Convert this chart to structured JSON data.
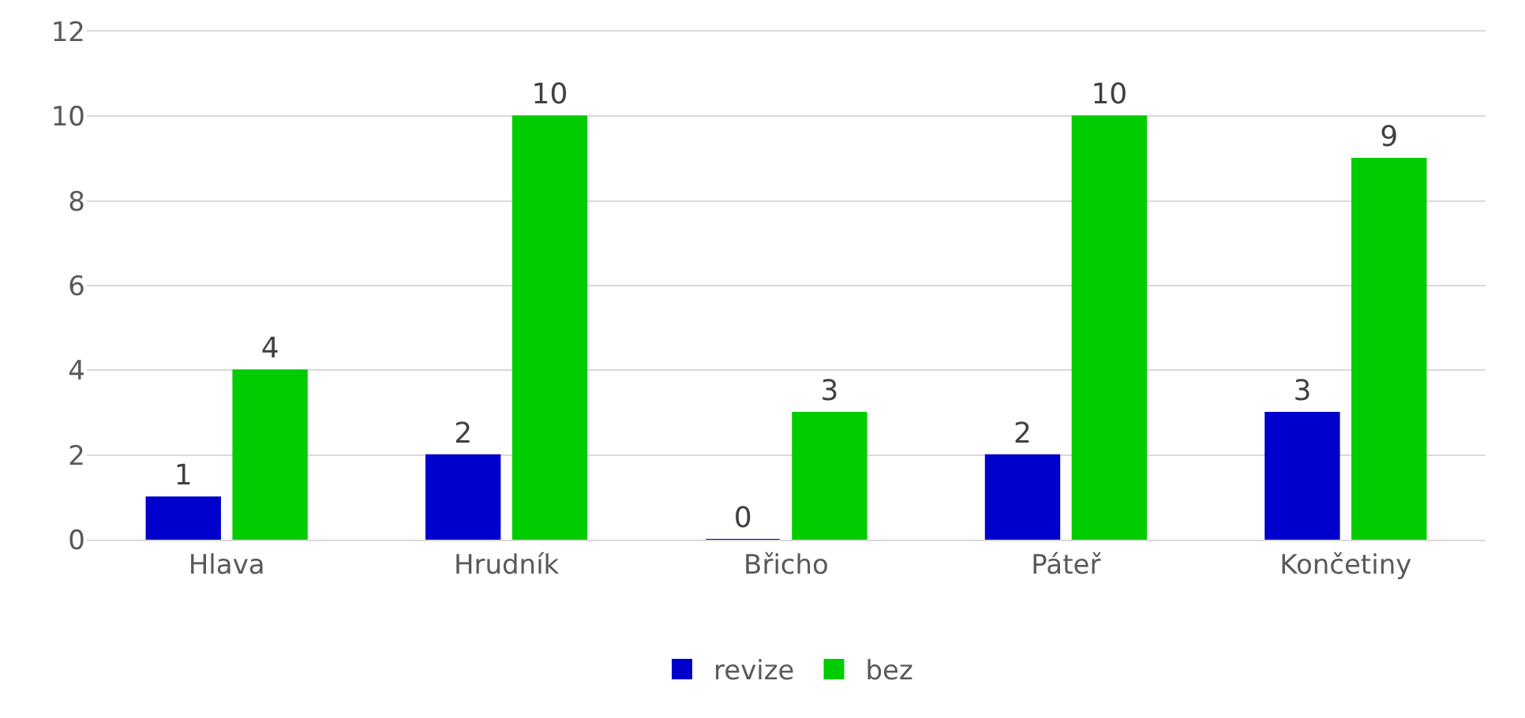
{
  "chart_data": {
    "type": "bar",
    "categories": [
      "Hlava",
      "Hrudník",
      "Břicho",
      "Páteř",
      "Končetiny"
    ],
    "series": [
      {
        "name": "revize",
        "color": "#0000cc",
        "values": [
          1,
          2,
          0,
          2,
          3
        ]
      },
      {
        "name": "bez",
        "color": "#00cc00",
        "values": [
          4,
          10,
          3,
          10,
          9
        ]
      }
    ],
    "ylim": [
      0,
      12
    ],
    "yticks": [
      0,
      2,
      4,
      6,
      8,
      10,
      12
    ],
    "grid": "y",
    "legend": "bottom",
    "data_labels": true
  }
}
